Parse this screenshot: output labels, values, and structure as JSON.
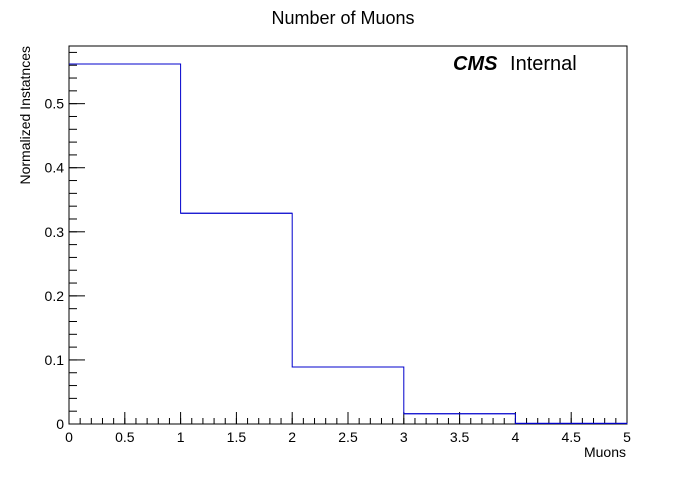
{
  "chart_data": {
    "type": "histogram",
    "title": "Number of Muons",
    "xlabel": "Muons",
    "ylabel": "Normalized Instatnces",
    "annotation": {
      "bold": "CMS",
      "normal": "Internal"
    },
    "bin_edges": [
      0,
      1,
      2,
      3,
      4,
      5
    ],
    "values": [
      0.562,
      0.329,
      0.089,
      0.016,
      0.001
    ],
    "xlim": [
      0,
      5
    ],
    "ylim": [
      0,
      0.59
    ],
    "x_ticks": [
      "0",
      "0.5",
      "1",
      "1.5",
      "2",
      "2.5",
      "3",
      "3.5",
      "4",
      "4.5",
      "5"
    ],
    "y_ticks": [
      "0",
      "0.1",
      "0.2",
      "0.3",
      "0.4",
      "0.5"
    ],
    "line_color": "#0000cc",
    "grid": false,
    "legend": "none"
  }
}
